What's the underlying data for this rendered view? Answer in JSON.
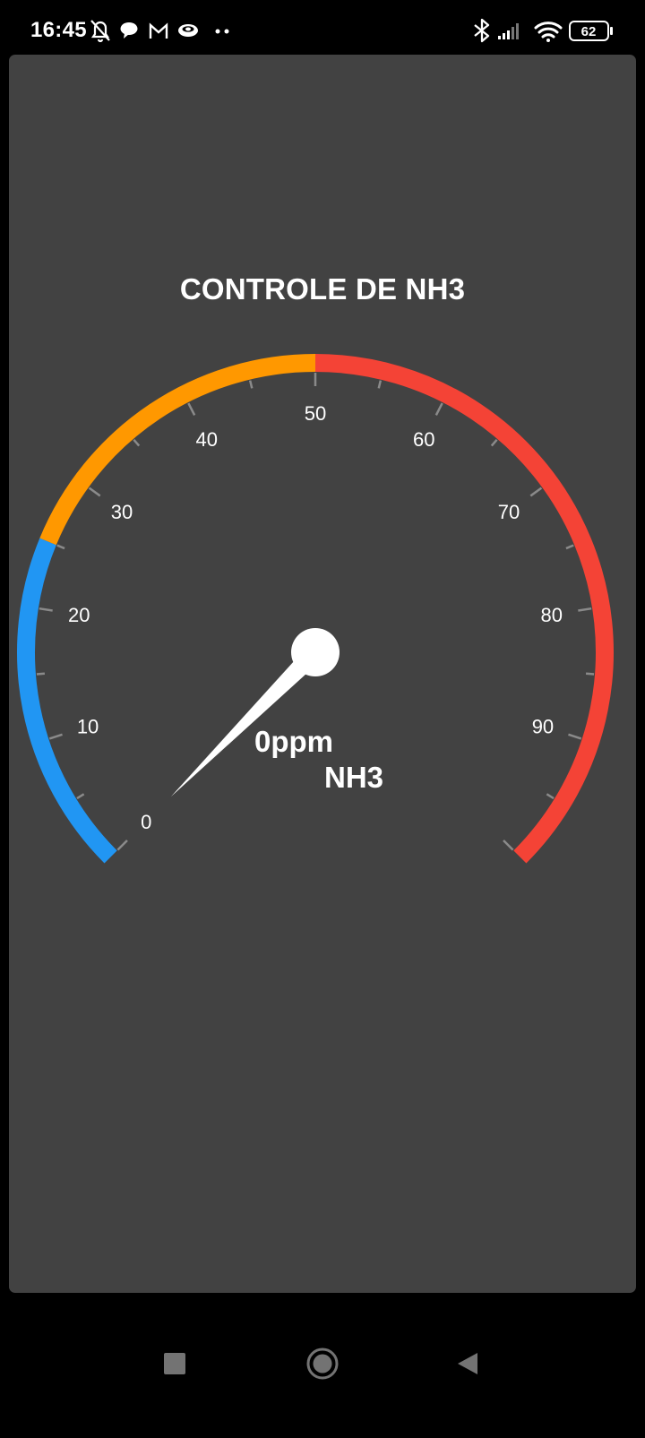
{
  "status_bar": {
    "time": "16:45",
    "left_icons": [
      "notifications-off-icon",
      "chat-bubble-icon",
      "gmail-icon",
      "eye-app-icon",
      "more-dots-icon"
    ],
    "right_icons": [
      "bluetooth-icon",
      "cellular-signal-icon",
      "wifi-icon",
      "battery-icon"
    ],
    "battery_level": "62"
  },
  "gauge": {
    "title": "CONTROLE DE NH3",
    "min": 0,
    "max": 100,
    "value": 0,
    "value_text": "0ppm",
    "unit_label": "NH3",
    "tick_labels": [
      "0",
      "10",
      "20",
      "30",
      "40",
      "50",
      "60",
      "70",
      "80",
      "90"
    ],
    "ranges": [
      {
        "from": 0,
        "to": 25,
        "color": "#2196F3"
      },
      {
        "from": 25,
        "to": 50,
        "color": "#FF9800"
      },
      {
        "from": 50,
        "to": 100,
        "color": "#F44336"
      }
    ],
    "needle_color": "#ffffff",
    "tick_color": "#8a8a8a"
  },
  "nav_bar": {
    "buttons": [
      "recent-apps-button",
      "home-button",
      "back-button"
    ]
  }
}
